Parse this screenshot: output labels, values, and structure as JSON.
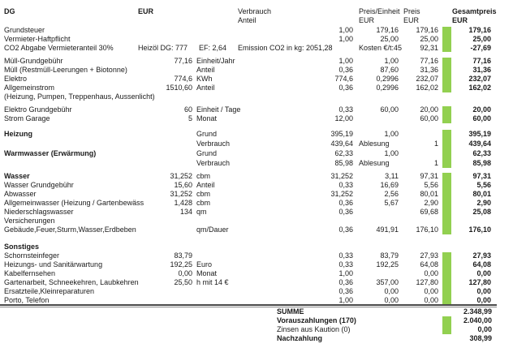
{
  "header": {
    "dg": "DG",
    "eur": "EUR",
    "verbrauch": "Verbrauch",
    "anteil": "Anteil",
    "preis_einheit": "Preis/Einheit",
    "preis_einheit_eur": "EUR",
    "preis": "Preis",
    "preis_eur": "EUR",
    "gesamtpreis": "Gesamtpreis",
    "gesamtpreis_eur": "EUR"
  },
  "sections": {
    "taxes": [
      {
        "label": "Grundsteuer",
        "verb": "1,00",
        "pe": "179,16",
        "preis": "179,16",
        "total": "179,16"
      },
      {
        "label": "Vermieter-Haftpflicht",
        "verb": "1,00",
        "pe": "25,00",
        "preis": "25,00",
        "total": "25,00"
      },
      {
        "label": "CO2 Abgabe Vermieteranteil 30%",
        "heizoel": "Heizöl DG: 777",
        "ef": "EF: 2,64",
        "emission": "Emission CO2 in kg: 2051,28",
        "kosten": "Kosten €/t:45",
        "preis": "92,31",
        "total": "-27,69"
      }
    ],
    "muell": [
      {
        "label": "Müll-Grundgebühr",
        "eur": "77,16",
        "unit": "Einheit/Jahr",
        "verb": "1,00",
        "pe": "1,00",
        "preis": "77,16",
        "total": "77,16"
      },
      {
        "label": "Müll (Restmüll-Leerungen + Biotonne)",
        "unit": "Anteil",
        "verb": "0,36",
        "pe": "87,60",
        "preis": "31,36",
        "total": "31,36"
      },
      {
        "label": "Elektro",
        "eur": "774,6",
        "unit": "KWh",
        "verb": "774,6",
        "pe": "0,2996",
        "preis": "232,07",
        "total": "232,07"
      },
      {
        "label": "Allgemeinstrom",
        "eur": "1510,60",
        "unit": "Anteil",
        "verb": "0,36",
        "pe": "0,2996",
        "preis": "162,02",
        "total": "162,02"
      },
      {
        "label": "(Heizung, Pumpen, Treppenhaus, Aussenlicht)"
      }
    ],
    "strom": [
      {
        "label": "Elektro Grundgebühr",
        "eur": "60",
        "unit": "Einheit / Tage",
        "verb": "0,33",
        "pe": "60,00",
        "preis": "20,00",
        "total": "20,00"
      },
      {
        "label": "Strom Garage",
        "eur": "5",
        "unit": "Monat",
        "verb": "12,00",
        "preis": "60,00",
        "total": "60,00"
      }
    ],
    "heizung": [
      {
        "label": "Heizung",
        "b": true,
        "unit": "Grund",
        "verb": "395,19",
        "pe": "1,00",
        "total": "395,19"
      },
      {
        "unit": "Verbrauch",
        "verb": "439,64",
        "verb_unit": "Ablesung",
        "preis": "1",
        "total": "439,64"
      },
      {
        "label": "Warmwasser (Erwärmung)",
        "b": true,
        "unit": "Grund",
        "verb": "62,33",
        "pe": "1,00",
        "total": "62,33"
      },
      {
        "unit": "Verbrauch",
        "verb": "85,98",
        "verb_unit": "Ablesung",
        "preis": "1",
        "total": "85,98"
      }
    ],
    "wasser": [
      {
        "label": "Wasser",
        "b": true,
        "eur": "31,252",
        "unit": "cbm",
        "verb": "31,252",
        "pe": "3,11",
        "preis": "97,31",
        "total": "97,31"
      },
      {
        "label": "Wasser Grundgebühr",
        "eur": "15,60",
        "unit": "Anteil",
        "verb": "0,33",
        "pe": "16,69",
        "preis": "5,56",
        "total": "5,56"
      },
      {
        "label": "Abwasser",
        "eur": "31,252",
        "unit": "cbm",
        "verb": "31,252",
        "pe": "2,56",
        "preis": "80,01",
        "total": "80,01"
      },
      {
        "label": "Allgemeinwasser (Heizung / Gartenbewäss",
        "eur": "1,428",
        "unit": "cbm",
        "verb": "0,36",
        "pe": "5,67",
        "preis": "2,90",
        "total": "2,90"
      },
      {
        "label": "Niederschlagswasser",
        "eur": "134",
        "unit": "qm",
        "verb": "0,36",
        "preis": "69,68",
        "total": "25,08"
      },
      {
        "label": "Versicherungen"
      },
      {
        "label": "Gebäude,Feuer,Sturm,Wasser,Erdbeben",
        "unit": "qm/Dauer",
        "verb": "0,36",
        "pe": "491,91",
        "preis": "176,10",
        "total": "176,10"
      }
    ],
    "sonstiges": [
      {
        "label": "Sonstiges",
        "b": true
      },
      {
        "label": "Schornsteinfeger",
        "eur": "83,79",
        "verb": "0,33",
        "pe": "83,79",
        "preis": "27,93",
        "total": "27,93"
      },
      {
        "label": "Heizungs- und Sanitärwartung",
        "eur": "192,25",
        "unit": "Euro",
        "verb": "0,33",
        "pe": "192,25",
        "preis": "64,08",
        "total": "64,08"
      },
      {
        "label": "Kabelfernsehen",
        "eur": "0,00",
        "unit": "Monat",
        "verb": "1,00",
        "preis": "0,00",
        "total": "0,00"
      },
      {
        "label": "Gartenarbeit, Schneekehren, Laubkehren",
        "eur": "25,50",
        "unit": "h mit 14 €",
        "verb": "0,36",
        "pe": "357,00",
        "preis": "127,80",
        "total": "127,80"
      },
      {
        "label": "Ersatzteile,Kleinreparaturen",
        "verb": "0,36",
        "pe": "0,00",
        "preis": "0,00",
        "total": "0,00"
      },
      {
        "label": "Porto, Telefon",
        "verb": "1,00",
        "pe": "0,00",
        "preis": "0,00",
        "total": "0,00"
      }
    ]
  },
  "summary": [
    {
      "label": "SUMME",
      "value": "2.348,99",
      "b": true
    },
    {
      "label": "Vorauszahlungen (170)",
      "value": "2.040,00",
      "b": true
    },
    {
      "label": "Zinsen aus Kaution (0)",
      "value": "0,00",
      "b": false
    },
    {
      "label": "Nachzahlung",
      "value": "308,99",
      "b": true
    }
  ],
  "colors": {
    "bar_green": "#92d050",
    "text": "#1a1a1a",
    "rule_dark": "#4a4a4a"
  }
}
